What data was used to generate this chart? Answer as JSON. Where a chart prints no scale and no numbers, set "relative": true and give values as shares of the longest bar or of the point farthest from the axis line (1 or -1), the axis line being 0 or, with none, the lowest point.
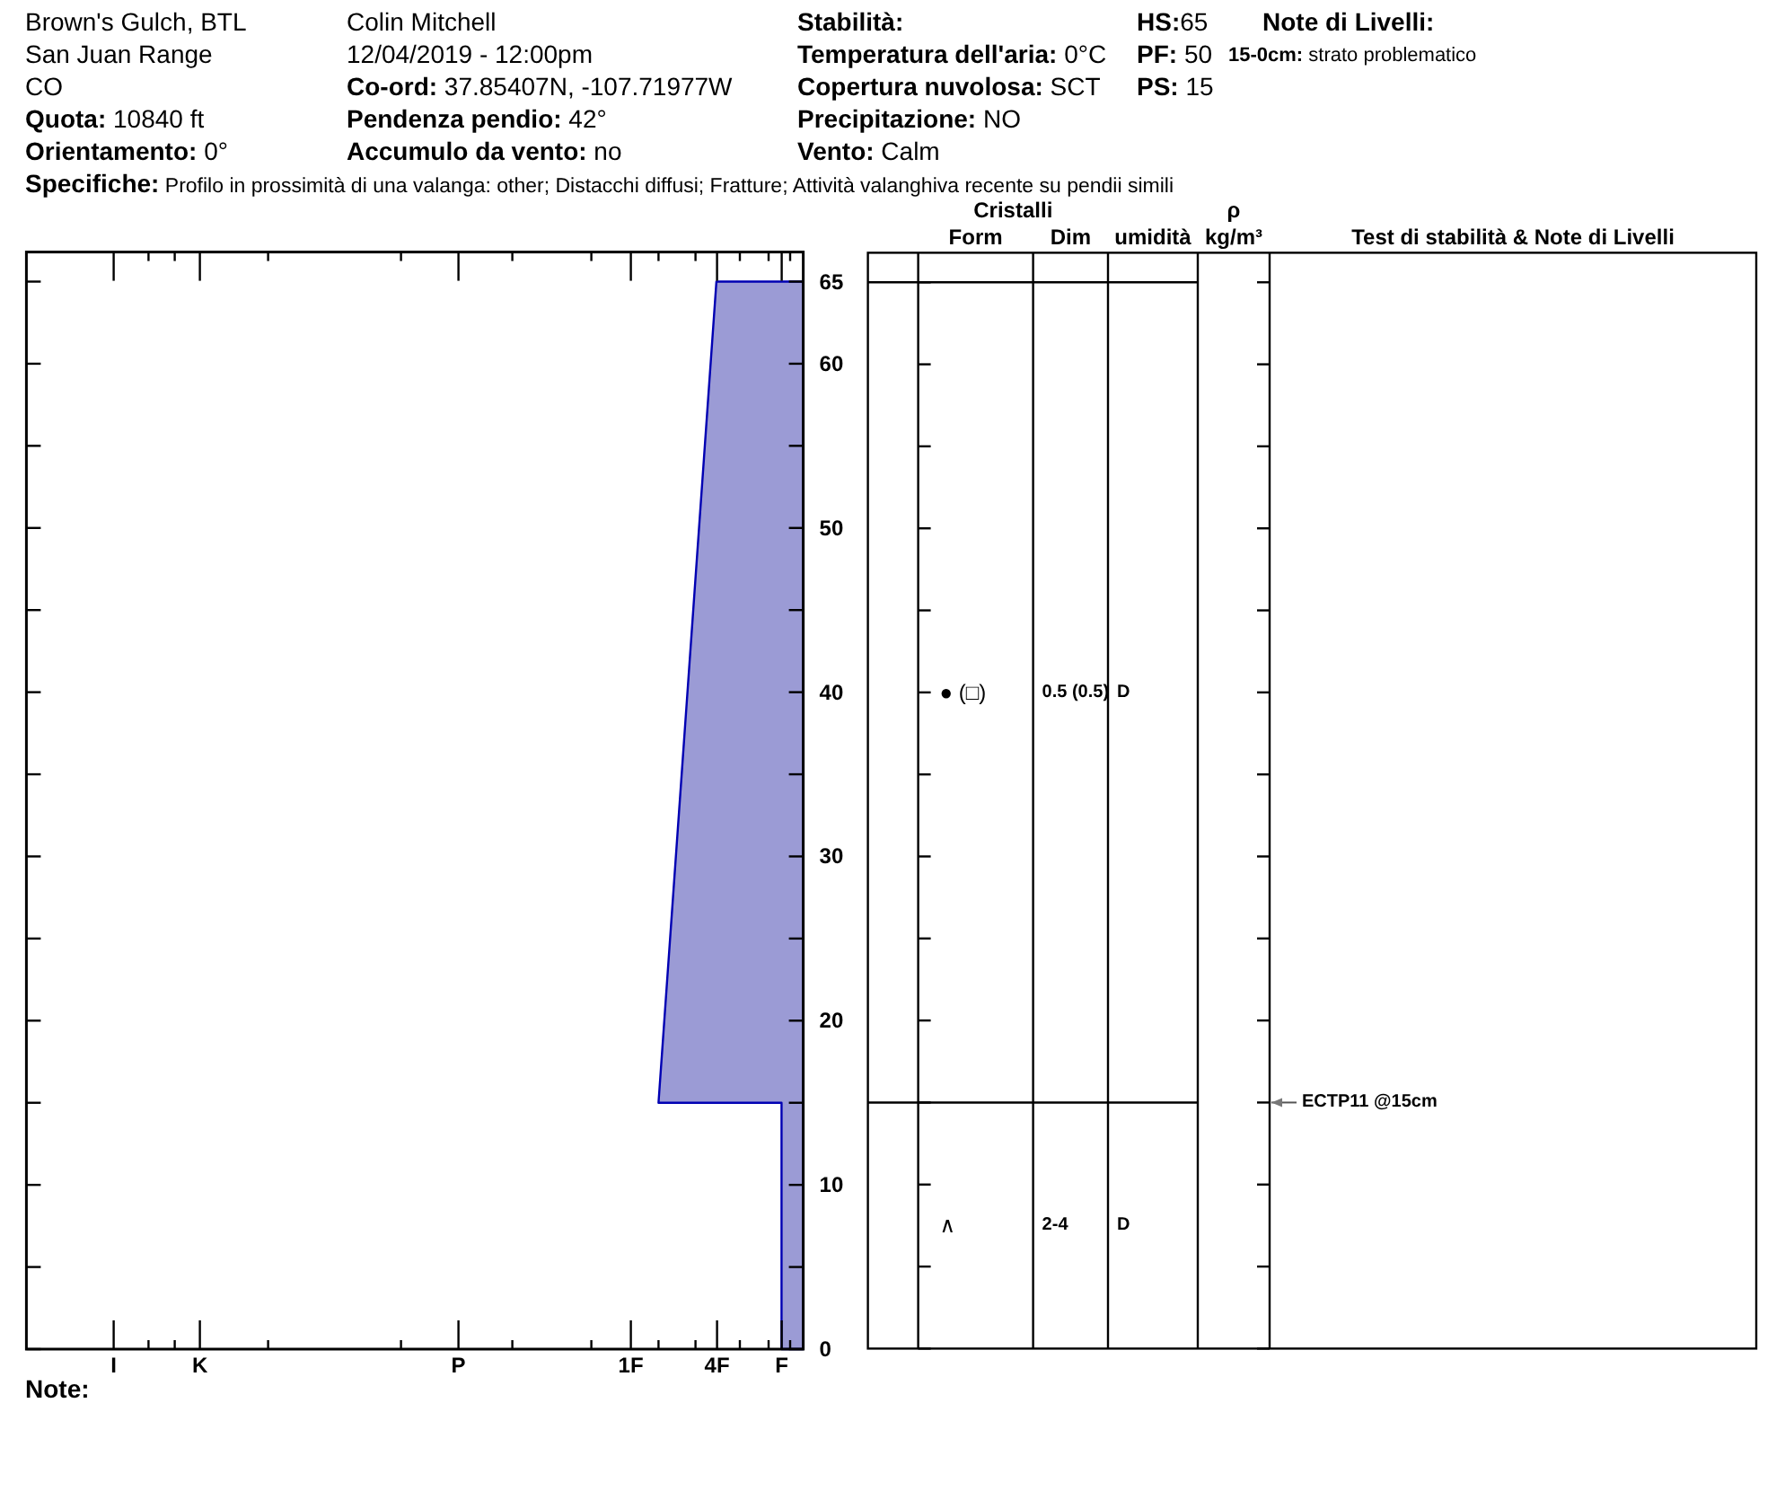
{
  "chart_data": [
    {
      "type": "other",
      "annotations": [
        "Brown's Gulch, BTL",
        "San Juan Range",
        "CO",
        "Quota: 10840 ft",
        "Orientamento: 0°",
        "Colin Mitchell",
        "12/04/2019 - 12:00pm",
        "Co-ord: 37.85407N, -107.71977W",
        "Pendenza pendio: 42°",
        "Accumulo da vento: no",
        "Stabilità:",
        "Temperatura dell'aria: 0°C",
        "Copertura nuvolosa: SCT",
        "Precipitazione: NO",
        "Vento: Calm",
        "HS:65",
        "PF: 50",
        "PS: 15",
        "Note di Livelli:",
        "15-0cm: strato problematico",
        "Specifiche: Profilo in prossimità di una valanga: other; Distacchi diffusi; Fratture; Attività valanghiva recente su pendii simili"
      ]
    },
    {
      "type": "area",
      "orientation": "horizontal",
      "relative": true,
      "x": [
        0,
        15,
        15,
        65
      ],
      "values": [
        -0.15,
        -0.15,
        -1,
        -0.6
      ],
      "color": "#9b9bd5",
      "ylim": [
        0,
        66.8
      ],
      "yticks": [
        0,
        {
          "value": 5,
          "label": null
        },
        10,
        {
          "value": 15,
          "label": null
        },
        20,
        {
          "value": 25,
          "label": null
        },
        30,
        {
          "value": 35,
          "label": null
        },
        40,
        {
          "value": 45,
          "label": null
        },
        50,
        {
          "value": 55,
          "label": null
        },
        60,
        65
      ],
      "annotations": [
        "I",
        "K",
        "P",
        "1F",
        "4F",
        "F",
        "Note:"
      ]
    },
    {
      "type": "other",
      "categories": [
        null,
        "Form",
        "Dim",
        "umidità",
        "ρ kg/m³",
        "Test di stabilità & Note di Livelli"
      ],
      "annotations": [
        "Cristalli",
        {
          "text": "● (□)",
          "x": "Form"
        },
        {
          "text": "0.5 (0.5)",
          "x": "Dim"
        },
        {
          "text": "D",
          "x": "umidità"
        },
        {
          "text": "∧",
          "x": "Form"
        },
        {
          "text": "2-4",
          "x": "Dim"
        },
        {
          "text": "D",
          "x": "umidità"
        },
        {
          "text": "ECTP11 @15cm",
          "x": "Test di stabilità & Note di Livelli"
        }
      ]
    }
  ]
}
